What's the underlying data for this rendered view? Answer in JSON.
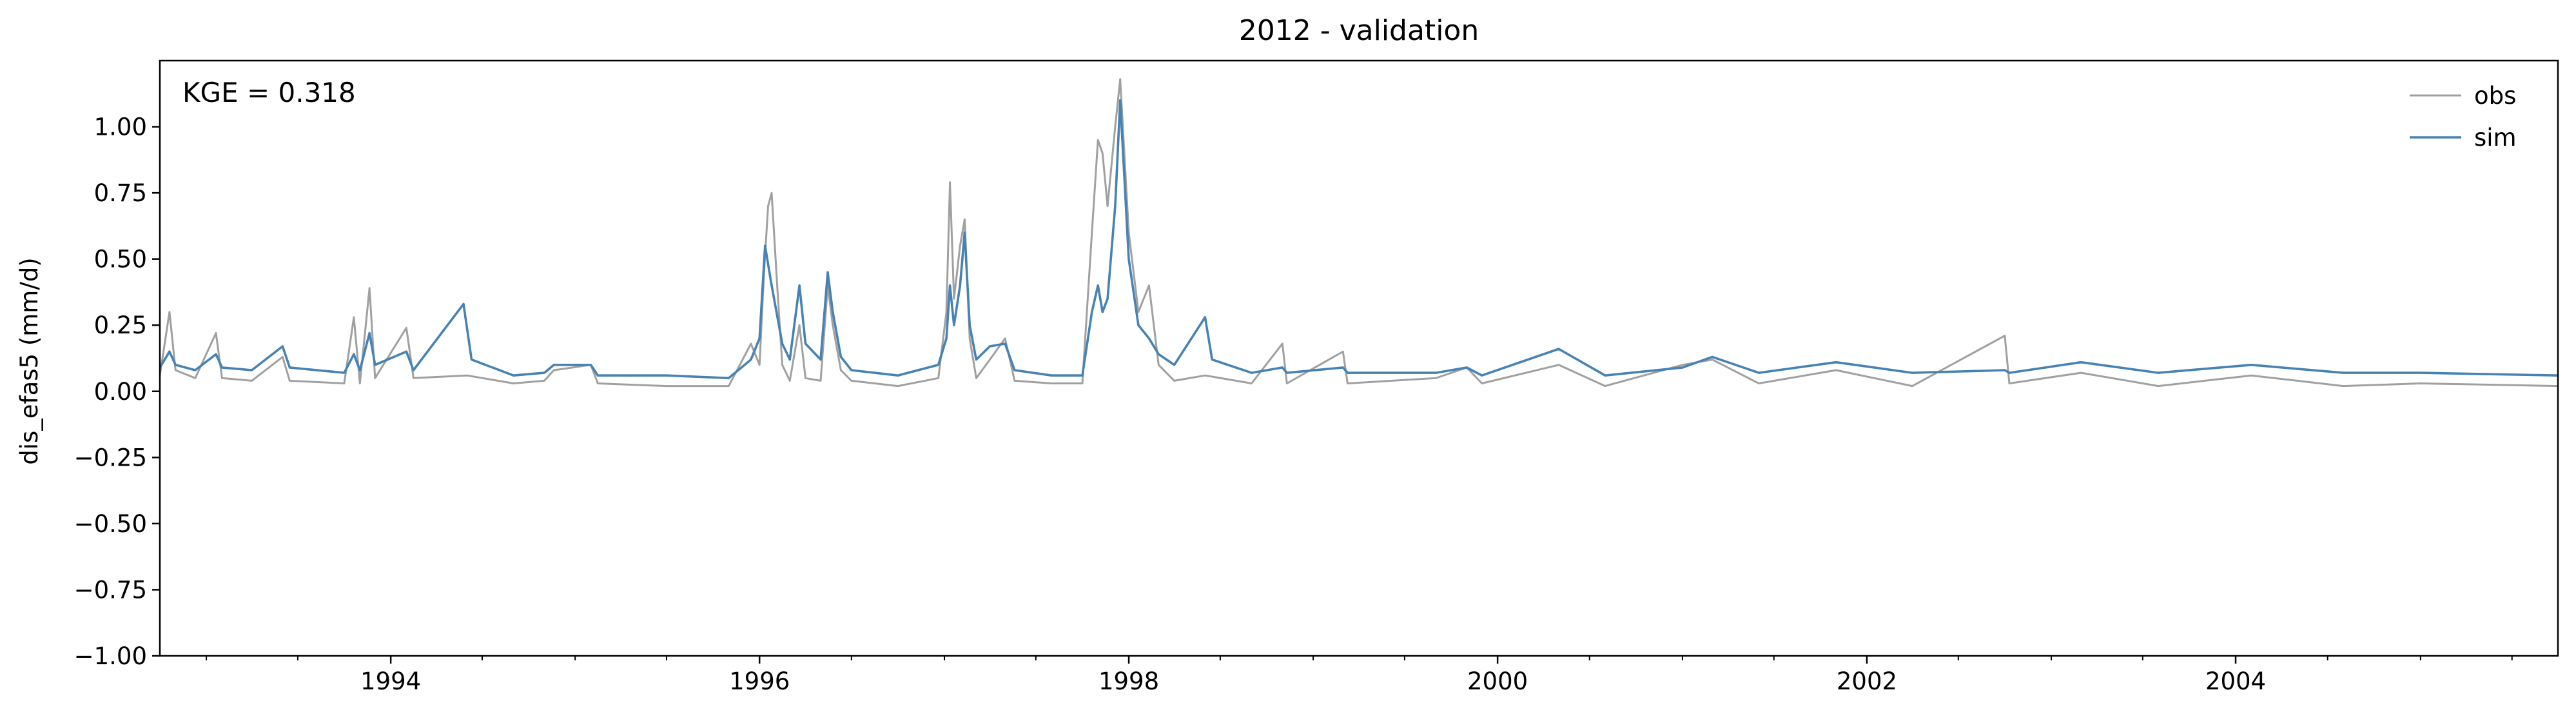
{
  "chart_data": {
    "type": "line",
    "title": "2012 - validation",
    "ylabel": "dis_efas5 (mm/d)",
    "xlabel": "",
    "annotation": "KGE = 0.318",
    "legend_position": "top-right",
    "grid": false,
    "xlim": [
      "1992-10-01",
      "2005-09-30"
    ],
    "ylim": [
      -1.0,
      1.25
    ],
    "yticks": [
      -1.0,
      -0.75,
      -0.5,
      -0.25,
      0.0,
      0.25,
      0.5,
      0.75,
      1.0
    ],
    "ytick_labels": [
      "−1.00",
      "−0.75",
      "−0.50",
      "−0.25",
      "0.00",
      "0.25",
      "0.50",
      "0.75",
      "1.00"
    ],
    "xticks": [
      "1994-01-01",
      "1996-01-01",
      "1998-01-01",
      "2000-01-01",
      "2002-01-01",
      "2004-01-01"
    ],
    "xtick_labels": [
      "1994",
      "1996",
      "1998",
      "2000",
      "2002",
      "2004"
    ],
    "series": [
      {
        "name": "obs",
        "color": "#a0a0a0",
        "points": [
          [
            "1992-10-01",
            0.06
          ],
          [
            "1992-10-20",
            0.3
          ],
          [
            "1992-11-01",
            0.08
          ],
          [
            "1992-12-10",
            0.05
          ],
          [
            "1993-01-20",
            0.22
          ],
          [
            "1993-02-01",
            0.05
          ],
          [
            "1993-04-01",
            0.04
          ],
          [
            "1993-06-01",
            0.13
          ],
          [
            "1993-06-15",
            0.04
          ],
          [
            "1993-10-01",
            0.03
          ],
          [
            "1993-10-20",
            0.28
          ],
          [
            "1993-11-01",
            0.03
          ],
          [
            "1993-11-20",
            0.39
          ],
          [
            "1993-12-01",
            0.05
          ],
          [
            "1994-02-01",
            0.24
          ],
          [
            "1994-02-15",
            0.05
          ],
          [
            "1994-06-01",
            0.06
          ],
          [
            "1994-09-01",
            0.03
          ],
          [
            "1994-11-01",
            0.04
          ],
          [
            "1994-11-20",
            0.08
          ],
          [
            "1995-02-01",
            0.1
          ],
          [
            "1995-02-15",
            0.03
          ],
          [
            "1995-07-01",
            0.02
          ],
          [
            "1995-11-01",
            0.02
          ],
          [
            "1995-12-15",
            0.18
          ],
          [
            "1996-01-01",
            0.1
          ],
          [
            "1996-01-10",
            0.45
          ],
          [
            "1996-01-18",
            0.7
          ],
          [
            "1996-01-25",
            0.75
          ],
          [
            "1996-02-05",
            0.4
          ],
          [
            "1996-02-15",
            0.1
          ],
          [
            "1996-03-01",
            0.04
          ],
          [
            "1996-03-20",
            0.25
          ],
          [
            "1996-04-01",
            0.05
          ],
          [
            "1996-05-01",
            0.04
          ],
          [
            "1996-05-15",
            0.4
          ],
          [
            "1996-05-25",
            0.25
          ],
          [
            "1996-06-10",
            0.08
          ],
          [
            "1996-07-01",
            0.04
          ],
          [
            "1996-10-01",
            0.02
          ],
          [
            "1996-12-20",
            0.05
          ],
          [
            "1997-01-05",
            0.3
          ],
          [
            "1997-01-12",
            0.79
          ],
          [
            "1997-01-20",
            0.35
          ],
          [
            "1997-02-01",
            0.55
          ],
          [
            "1997-02-10",
            0.65
          ],
          [
            "1997-02-20",
            0.2
          ],
          [
            "1997-03-05",
            0.05
          ],
          [
            "1997-04-01",
            0.12
          ],
          [
            "1997-05-01",
            0.2
          ],
          [
            "1997-05-20",
            0.04
          ],
          [
            "1997-08-01",
            0.03
          ],
          [
            "1997-10-01",
            0.03
          ],
          [
            "1997-10-20",
            0.6
          ],
          [
            "1997-11-01",
            0.95
          ],
          [
            "1997-11-10",
            0.9
          ],
          [
            "1997-11-20",
            0.7
          ],
          [
            "1997-12-05",
            1.0
          ],
          [
            "1997-12-15",
            1.18
          ],
          [
            "1998-01-01",
            0.6
          ],
          [
            "1998-01-20",
            0.3
          ],
          [
            "1998-02-10",
            0.4
          ],
          [
            "1998-03-01",
            0.1
          ],
          [
            "1998-04-01",
            0.04
          ],
          [
            "1998-06-01",
            0.06
          ],
          [
            "1998-09-01",
            0.03
          ],
          [
            "1998-11-01",
            0.18
          ],
          [
            "1998-11-10",
            0.03
          ],
          [
            "1999-03-01",
            0.15
          ],
          [
            "1999-03-10",
            0.03
          ],
          [
            "1999-09-01",
            0.05
          ],
          [
            "1999-11-01",
            0.09
          ],
          [
            "1999-12-01",
            0.03
          ],
          [
            "2000-05-01",
            0.1
          ],
          [
            "2000-08-01",
            0.02
          ],
          [
            "2001-01-01",
            0.1
          ],
          [
            "2001-03-01",
            0.12
          ],
          [
            "2001-06-01",
            0.03
          ],
          [
            "2001-11-01",
            0.08
          ],
          [
            "2002-04-01",
            0.02
          ],
          [
            "2002-10-01",
            0.21
          ],
          [
            "2002-10-10",
            0.03
          ],
          [
            "2003-03-01",
            0.07
          ],
          [
            "2003-08-01",
            0.02
          ],
          [
            "2004-02-01",
            0.06
          ],
          [
            "2004-08-01",
            0.02
          ],
          [
            "2005-01-01",
            0.03
          ],
          [
            "2005-09-30",
            0.02
          ]
        ]
      },
      {
        "name": "sim",
        "color": "#4682b4",
        "points": [
          [
            "1992-10-01",
            0.09
          ],
          [
            "1992-10-20",
            0.15
          ],
          [
            "1992-11-01",
            0.1
          ],
          [
            "1992-12-10",
            0.08
          ],
          [
            "1993-01-20",
            0.14
          ],
          [
            "1993-02-01",
            0.09
          ],
          [
            "1993-04-01",
            0.08
          ],
          [
            "1993-06-01",
            0.17
          ],
          [
            "1993-06-15",
            0.09
          ],
          [
            "1993-10-01",
            0.07
          ],
          [
            "1993-10-20",
            0.14
          ],
          [
            "1993-11-01",
            0.08
          ],
          [
            "1993-11-20",
            0.22
          ],
          [
            "1993-12-01",
            0.1
          ],
          [
            "1994-02-01",
            0.15
          ],
          [
            "1994-02-15",
            0.08
          ],
          [
            "1994-05-25",
            0.33
          ],
          [
            "1994-06-10",
            0.12
          ],
          [
            "1994-09-01",
            0.06
          ],
          [
            "1994-11-01",
            0.07
          ],
          [
            "1994-11-20",
            0.1
          ],
          [
            "1995-02-01",
            0.1
          ],
          [
            "1995-02-15",
            0.06
          ],
          [
            "1995-07-01",
            0.06
          ],
          [
            "1995-11-01",
            0.05
          ],
          [
            "1995-12-15",
            0.12
          ],
          [
            "1996-01-01",
            0.2
          ],
          [
            "1996-01-12",
            0.55
          ],
          [
            "1996-01-25",
            0.4
          ],
          [
            "1996-02-15",
            0.18
          ],
          [
            "1996-03-01",
            0.12
          ],
          [
            "1996-03-20",
            0.4
          ],
          [
            "1996-04-01",
            0.18
          ],
          [
            "1996-05-01",
            0.12
          ],
          [
            "1996-05-15",
            0.45
          ],
          [
            "1996-05-25",
            0.3
          ],
          [
            "1996-06-10",
            0.13
          ],
          [
            "1996-07-01",
            0.08
          ],
          [
            "1996-10-01",
            0.06
          ],
          [
            "1996-12-20",
            0.1
          ],
          [
            "1997-01-05",
            0.2
          ],
          [
            "1997-01-12",
            0.4
          ],
          [
            "1997-01-20",
            0.25
          ],
          [
            "1997-02-01",
            0.4
          ],
          [
            "1997-02-10",
            0.6
          ],
          [
            "1997-02-20",
            0.25
          ],
          [
            "1997-03-05",
            0.12
          ],
          [
            "1997-04-01",
            0.17
          ],
          [
            "1997-05-01",
            0.18
          ],
          [
            "1997-05-20",
            0.08
          ],
          [
            "1997-08-01",
            0.06
          ],
          [
            "1997-10-01",
            0.06
          ],
          [
            "1997-10-20",
            0.3
          ],
          [
            "1997-11-01",
            0.4
          ],
          [
            "1997-11-10",
            0.3
          ],
          [
            "1997-11-20",
            0.35
          ],
          [
            "1997-12-05",
            0.7
          ],
          [
            "1997-12-15",
            1.1
          ],
          [
            "1998-01-01",
            0.5
          ],
          [
            "1998-01-20",
            0.25
          ],
          [
            "1998-02-10",
            0.2
          ],
          [
            "1998-03-01",
            0.14
          ],
          [
            "1998-04-01",
            0.1
          ],
          [
            "1998-06-01",
            0.28
          ],
          [
            "1998-06-15",
            0.12
          ],
          [
            "1998-09-01",
            0.07
          ],
          [
            "1998-11-01",
            0.09
          ],
          [
            "1998-11-10",
            0.07
          ],
          [
            "1999-03-01",
            0.09
          ],
          [
            "1999-03-10",
            0.07
          ],
          [
            "1999-09-01",
            0.07
          ],
          [
            "1999-11-01",
            0.09
          ],
          [
            "1999-12-01",
            0.06
          ],
          [
            "2000-05-01",
            0.16
          ],
          [
            "2000-08-01",
            0.06
          ],
          [
            "2001-01-01",
            0.09
          ],
          [
            "2001-03-01",
            0.13
          ],
          [
            "2001-06-01",
            0.07
          ],
          [
            "2001-11-01",
            0.11
          ],
          [
            "2002-04-01",
            0.07
          ],
          [
            "2002-10-01",
            0.08
          ],
          [
            "2002-10-10",
            0.07
          ],
          [
            "2003-03-01",
            0.11
          ],
          [
            "2003-08-01",
            0.07
          ],
          [
            "2004-02-01",
            0.1
          ],
          [
            "2004-08-01",
            0.07
          ],
          [
            "2005-01-01",
            0.07
          ],
          [
            "2005-09-30",
            0.06
          ]
        ]
      }
    ]
  }
}
